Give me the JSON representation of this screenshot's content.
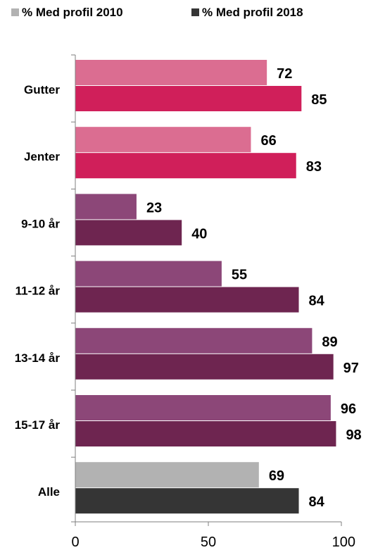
{
  "chart_data": {
    "type": "bar",
    "orientation": "horizontal",
    "categories": [
      "Gutter",
      "Jenter",
      "9-10 år",
      "11-12 år",
      "13-14 år",
      "15-17 år",
      "Alle"
    ],
    "series": [
      {
        "name": "% Med profil 2010",
        "values": [
          72,
          66,
          23,
          55,
          89,
          96,
          69
        ]
      },
      {
        "name": "% Med profil 2018",
        "values": [
          85,
          83,
          40,
          84,
          97,
          98,
          84
        ]
      }
    ],
    "bar_colors": {
      "gender_2010": "#db6d91",
      "gender_2018": "#d01f5a",
      "age_2010": "#8c4778",
      "age_2018": "#6e2550",
      "total_2010": "#b2b2b2",
      "total_2018": "#353535"
    },
    "legend_colors": [
      "#b2b2b2",
      "#353535"
    ],
    "xlim": [
      0,
      100
    ],
    "xticks": [
      0,
      50,
      100
    ],
    "title": "",
    "xlabel": "",
    "ylabel": "",
    "legend_position": "top",
    "grid": false
  }
}
